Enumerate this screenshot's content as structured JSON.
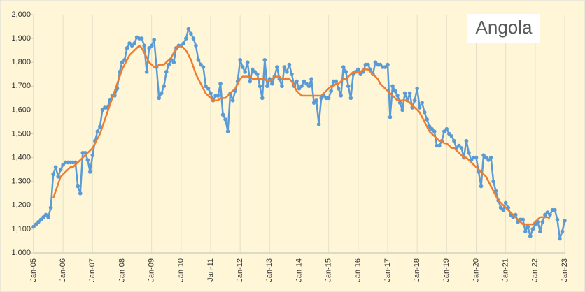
{
  "chart_data": {
    "type": "line",
    "title": "Angola",
    "categories": [
      "Jan-05",
      null,
      null,
      null,
      null,
      null,
      null,
      null,
      null,
      null,
      null,
      null,
      "Jan-06",
      null,
      null,
      null,
      null,
      null,
      null,
      null,
      null,
      null,
      null,
      null,
      "Jan-07",
      null,
      null,
      null,
      null,
      null,
      null,
      null,
      null,
      null,
      null,
      null,
      "Jan-08",
      null,
      null,
      null,
      null,
      null,
      null,
      null,
      null,
      null,
      null,
      null,
      "Jan-09",
      null,
      null,
      null,
      null,
      null,
      null,
      null,
      null,
      null,
      null,
      null,
      "Jan-10",
      null,
      null,
      null,
      null,
      null,
      null,
      null,
      null,
      null,
      null,
      null,
      "Jan-11",
      null,
      null,
      null,
      null,
      null,
      null,
      null,
      null,
      null,
      null,
      null,
      "Jan-12",
      null,
      null,
      null,
      null,
      null,
      null,
      null,
      null,
      null,
      null,
      null,
      "Jan-13",
      null,
      null,
      null,
      null,
      null,
      null,
      null,
      null,
      null,
      null,
      null,
      "Jan-14",
      null,
      null,
      null,
      null,
      null,
      null,
      null,
      null,
      null,
      null,
      null,
      "Jan-15",
      null,
      null,
      null,
      null,
      null,
      null,
      null,
      null,
      null,
      null,
      null,
      "Jan-16",
      null,
      null,
      null,
      null,
      null,
      null,
      null,
      null,
      null,
      null,
      null,
      "Jan-17",
      null,
      null,
      null,
      null,
      null,
      null,
      null,
      null,
      null,
      null,
      null,
      "Jan-18",
      null,
      null,
      null,
      null,
      null,
      null,
      null,
      null,
      null,
      null,
      null,
      "Jan-19",
      null,
      null,
      null,
      null,
      null,
      null,
      null,
      null,
      null,
      null,
      null,
      "Jan-20",
      null,
      null,
      null,
      null,
      null,
      null,
      null,
      null,
      null,
      null,
      null,
      "Jan-21",
      null,
      null,
      null,
      null,
      null,
      null,
      null,
      null,
      null,
      null,
      null,
      "Jan-22",
      null,
      null,
      null,
      null,
      null,
      null,
      null,
      null,
      null,
      null,
      null,
      "Jan-23"
    ],
    "series": [
      {
        "color": "#5b9bd5",
        "markers": true,
        "values": [
          1110,
          1120,
          1130,
          1140,
          1150,
          1160,
          1150,
          1190,
          1330,
          1360,
          1320,
          1350,
          1370,
          1380,
          1380,
          1380,
          1380,
          1380,
          1280,
          1250,
          1420,
          1420,
          1390,
          1340,
          1410,
          1470,
          1510,
          1530,
          1600,
          1610,
          1610,
          1640,
          1660,
          1660,
          1690,
          1760,
          1800,
          1810,
          1860,
          1880,
          1870,
          1880,
          1905,
          1900,
          1900,
          1870,
          1760,
          1860,
          1870,
          1895,
          1780,
          1650,
          1670,
          1700,
          1760,
          1790,
          1810,
          1800,
          1860,
          1870,
          1870,
          1880,
          1900,
          1940,
          1920,
          1900,
          1870,
          1810,
          1790,
          1780,
          1700,
          1690,
          1670,
          1640,
          1660,
          1660,
          1710,
          1580,
          1560,
          1510,
          1670,
          1640,
          1680,
          1720,
          1810,
          1780,
          1760,
          1800,
          1720,
          1770,
          1760,
          1750,
          1700,
          1650,
          1810,
          1700,
          1730,
          1710,
          1740,
          1780,
          1730,
          1700,
          1780,
          1760,
          1790,
          1750,
          1700,
          1720,
          1690,
          1700,
          1720,
          1710,
          1700,
          1730,
          1630,
          1640,
          1540,
          1650,
          1660,
          1650,
          1650,
          1680,
          1720,
          1720,
          1690,
          1660,
          1780,
          1760,
          1700,
          1650,
          1750,
          1760,
          1770,
          1750,
          1760,
          1790,
          1790,
          1770,
          1750,
          1800,
          1790,
          1790,
          1780,
          1780,
          1790,
          1570,
          1700,
          1680,
          1660,
          1630,
          1600,
          1670,
          1640,
          1670,
          1610,
          1640,
          1690,
          1610,
          1630,
          1590,
          1560,
          1530,
          1520,
          1510,
          1450,
          1450,
          1470,
          1510,
          1520,
          1500,
          1490,
          1470,
          1440,
          1450,
          1440,
          1400,
          1470,
          1420,
          1390,
          1400,
          1400,
          1340,
          1280,
          1410,
          1400,
          1390,
          1400,
          1300,
          1260,
          1220,
          1190,
          1180,
          1210,
          1190,
          1160,
          1150,
          1160,
          1130,
          1140,
          1140,
          1090,
          1110,
          1070,
          1100,
          1120,
          1130,
          1090,
          1130,
          1160,
          1170,
          1160,
          1180,
          1180,
          1140,
          1060,
          1090,
          1135
        ]
      },
      {
        "color": "#ed7d31",
        "markers": false,
        "values": [
          null,
          null,
          null,
          null,
          null,
          null,
          null,
          null,
          1230,
          1260,
          1290,
          1320,
          1330,
          1340,
          1350,
          1360,
          1360,
          1370,
          1380,
          1390,
          1400,
          1410,
          1420,
          1430,
          1440,
          1460,
          1480,
          1500,
          1530,
          1560,
          1590,
          1620,
          1650,
          1680,
          1710,
          1740,
          1770,
          1790,
          1810,
          1830,
          1840,
          1850,
          1860,
          1870,
          1860,
          1840,
          1820,
          1800,
          1790,
          1780,
          1780,
          1790,
          1790,
          1790,
          1800,
          1810,
          1820,
          1840,
          1860,
          1870,
          1870,
          1860,
          1850,
          1830,
          1810,
          1780,
          1750,
          1730,
          1710,
          1690,
          1670,
          1660,
          1650,
          1640,
          1640,
          1640,
          1650,
          1650,
          1650,
          1660,
          1670,
          1680,
          1690,
          1710,
          1730,
          1740,
          1740,
          1740,
          1740,
          1730,
          1730,
          1730,
          1730,
          1730,
          1730,
          1720,
          1720,
          1730,
          1740,
          1740,
          1740,
          1730,
          1730,
          1730,
          1730,
          1720,
          1700,
          1680,
          1670,
          1660,
          1660,
          1660,
          1660,
          1660,
          1660,
          1660,
          1660,
          1660,
          1670,
          1680,
          1690,
          1700,
          1700,
          1710,
          1710,
          1720,
          1730,
          1730,
          1740,
          1750,
          1760,
          1760,
          1760,
          1760,
          1770,
          1770,
          1770,
          1760,
          1750,
          1740,
          1730,
          1710,
          1700,
          1690,
          1680,
          1670,
          1660,
          1650,
          1640,
          1640,
          1640,
          1640,
          1640,
          1630,
          1620,
          1610,
          1600,
          1590,
          1570,
          1550,
          1530,
          1510,
          1500,
          1490,
          1480,
          1470,
          1470,
          1460,
          1460,
          1450,
          1440,
          1440,
          1430,
          1420,
          1410,
          1400,
          1400,
          1390,
          1380,
          1370,
          1360,
          1350,
          1340,
          1330,
          1320,
          1300,
          1280,
          1260,
          1240,
          1220,
          1210,
          1200,
          1190,
          1180,
          1170,
          1160,
          1150,
          1140,
          1130,
          1120,
          1120,
          1120,
          1120,
          1120,
          1130,
          1140,
          1150,
          1150,
          1150,
          1150,
          1145,
          null,
          null,
          null,
          null,
          null,
          null
        ]
      }
    ],
    "ylim": [
      1000,
      2000
    ],
    "yticks": [
      {
        "value": 1000,
        "label": "1,000"
      },
      {
        "value": 1100,
        "label": "1,100"
      },
      {
        "value": 1200,
        "label": "1,200"
      },
      {
        "value": 1300,
        "label": "1,300"
      },
      {
        "value": 1400,
        "label": "1,400"
      },
      {
        "value": 1500,
        "label": "1,500"
      },
      {
        "value": 1600,
        "label": "1,600"
      },
      {
        "value": 1700,
        "label": "1,700"
      },
      {
        "value": 1800,
        "label": "1,800"
      },
      {
        "value": 1900,
        "label": "1,900"
      },
      {
        "value": 2000,
        "label": "2,000"
      }
    ],
    "grid": "x"
  }
}
